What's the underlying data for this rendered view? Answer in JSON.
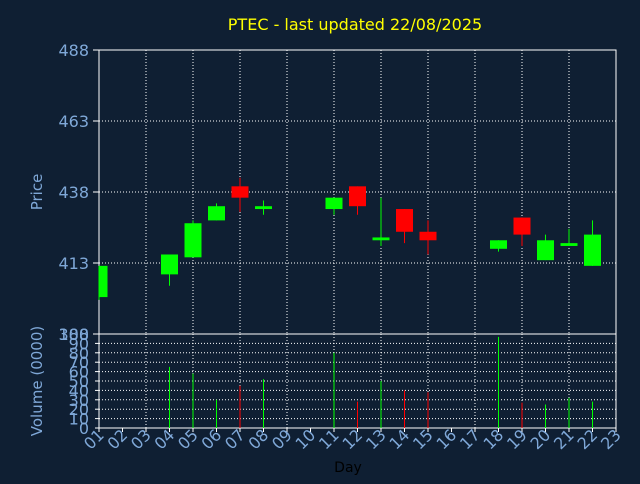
{
  "colors": {
    "background": "#0f1f33",
    "title": "#ffff00",
    "axis_text": "#7fa8d8",
    "grid": "#ffffff",
    "up": "#00ff00",
    "down": "#ff0000"
  },
  "chart_data": [
    {
      "type": "candlestick",
      "title": "PTEC - last updated 22/08/2025",
      "ylabel": "Price",
      "ylim": [
        388,
        488
      ],
      "yticks": [
        388,
        413,
        438,
        463,
        488
      ],
      "grid": true,
      "days": [
        "01",
        "02",
        "03",
        "04",
        "05",
        "06",
        "07",
        "08",
        "09",
        "10",
        "11",
        "12",
        "13",
        "14",
        "15",
        "16",
        "17",
        "18",
        "19",
        "20",
        "21",
        "22",
        "23"
      ],
      "candles": [
        {
          "day": "01",
          "open": 401,
          "close": 412,
          "high": 412,
          "low": 400
        },
        {
          "day": "04",
          "open": 409,
          "close": 416,
          "high": 416,
          "low": 405
        },
        {
          "day": "05",
          "open": 415,
          "close": 427,
          "high": 428,
          "low": 415
        },
        {
          "day": "06",
          "open": 428,
          "close": 433,
          "high": 434,
          "low": 428
        },
        {
          "day": "07",
          "open": 440,
          "close": 436,
          "high": 443,
          "low": 431
        },
        {
          "day": "08",
          "open": 432,
          "close": 433,
          "high": 435,
          "low": 430
        },
        {
          "day": "11",
          "open": 432,
          "close": 436,
          "high": 436,
          "low": 430
        },
        {
          "day": "12",
          "open": 440,
          "close": 433,
          "high": 440,
          "low": 430
        },
        {
          "day": "13",
          "open": 421,
          "close": 422,
          "high": 436,
          "low": 419
        },
        {
          "day": "14",
          "open": 432,
          "close": 424,
          "high": 432,
          "low": 420
        },
        {
          "day": "15",
          "open": 424,
          "close": 421,
          "high": 428,
          "low": 416
        },
        {
          "day": "18",
          "open": 418,
          "close": 421,
          "high": 421,
          "low": 417
        },
        {
          "day": "19",
          "open": 429,
          "close": 423,
          "high": 429,
          "low": 419
        },
        {
          "day": "20",
          "open": 414,
          "close": 421,
          "high": 423,
          "low": 414
        },
        {
          "day": "21",
          "open": 419,
          "close": 420,
          "high": 425,
          "low": 419
        },
        {
          "day": "22",
          "open": 412,
          "close": 423,
          "high": 428,
          "low": 412
        }
      ]
    },
    {
      "type": "bar",
      "ylabel": "Volume (0000)",
      "xlabel": "Day",
      "ylim": [
        0,
        100
      ],
      "yticks": [
        0,
        10,
        20,
        30,
        40,
        50,
        60,
        70,
        80,
        90,
        100
      ],
      "bars": [
        {
          "day": "04",
          "value": 65,
          "direction": "up"
        },
        {
          "day": "05",
          "value": 58,
          "direction": "up"
        },
        {
          "day": "06",
          "value": 30,
          "direction": "up"
        },
        {
          "day": "07",
          "value": 45,
          "direction": "down"
        },
        {
          "day": "08",
          "value": 52,
          "direction": "up"
        },
        {
          "day": "11",
          "value": 80,
          "direction": "up"
        },
        {
          "day": "12",
          "value": 28,
          "direction": "down"
        },
        {
          "day": "13",
          "value": 50,
          "direction": "up"
        },
        {
          "day": "14",
          "value": 40,
          "direction": "down"
        },
        {
          "day": "15",
          "value": 38,
          "direction": "down"
        },
        {
          "day": "18",
          "value": 97,
          "direction": "up"
        },
        {
          "day": "19",
          "value": 27,
          "direction": "down"
        },
        {
          "day": "20",
          "value": 25,
          "direction": "up"
        },
        {
          "day": "21",
          "value": 32,
          "direction": "up"
        },
        {
          "day": "22",
          "value": 28,
          "direction": "up"
        }
      ]
    }
  ]
}
